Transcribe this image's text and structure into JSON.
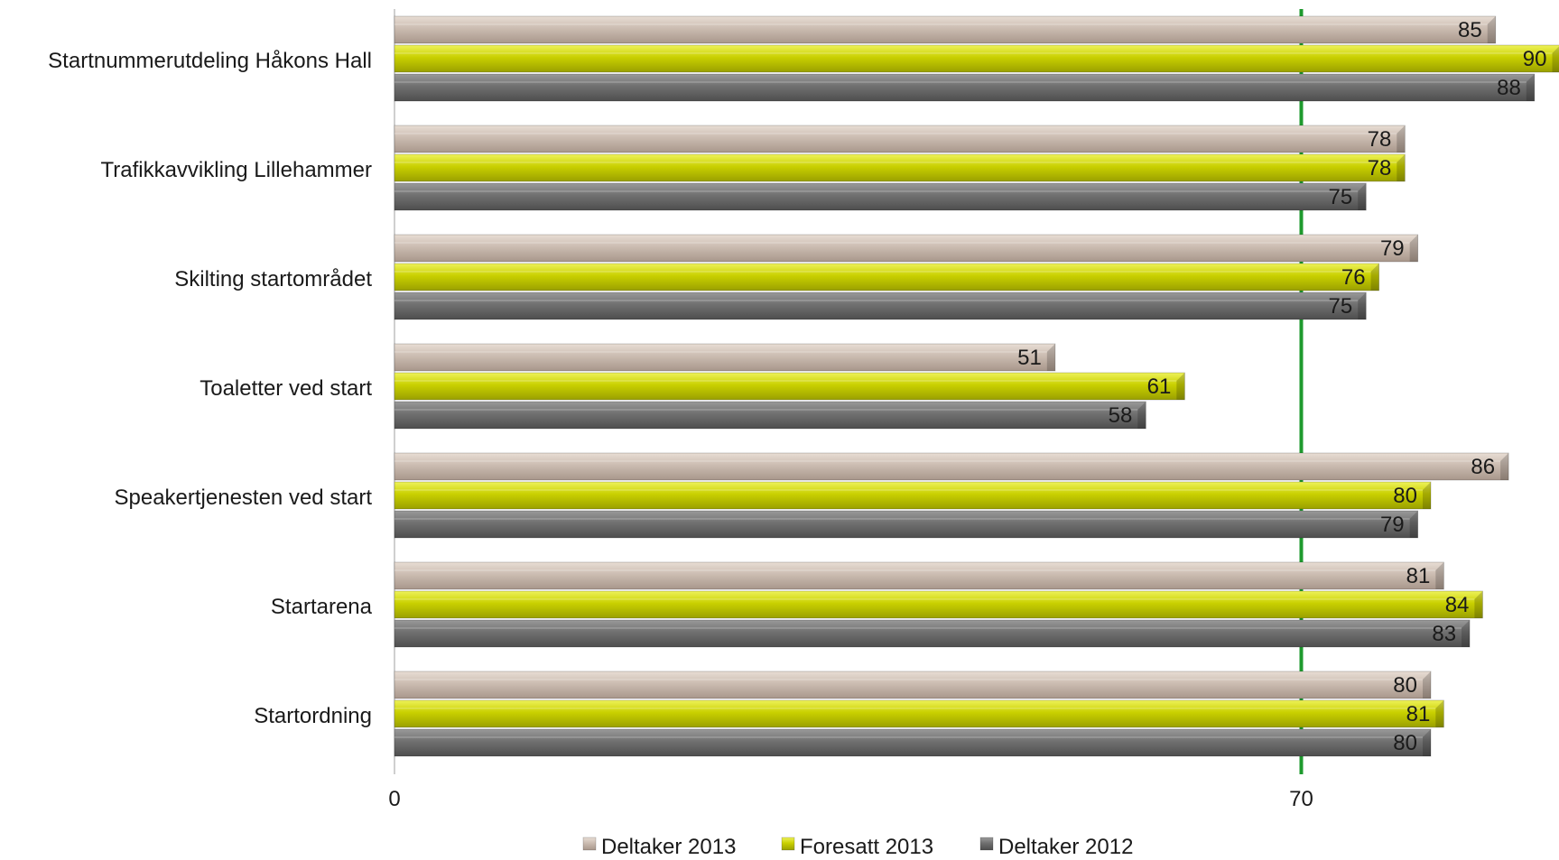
{
  "chart_data": {
    "type": "bar",
    "orientation": "horizontal",
    "categories": [
      "Startnummerutdeling Håkons Hall",
      "Trafikkavvikling Lillehammer",
      "Skilting startområdet",
      "Toaletter ved start",
      "Speakertjenesten ved start",
      "Startarena",
      "Startordning"
    ],
    "series": [
      {
        "name": "Deltaker 2013",
        "values": [
          85,
          78,
          79,
          51,
          86,
          81,
          80
        ],
        "color": "#c9b9ad"
      },
      {
        "name": "Foresatt 2013",
        "values": [
          90,
          78,
          76,
          61,
          80,
          84,
          81
        ],
        "color": "#c4cc00"
      },
      {
        "name": "Deltaker 2012",
        "values": [
          88,
          75,
          75,
          58,
          79,
          83,
          80
        ],
        "color": "#6e6e6e"
      }
    ],
    "x_ticks": [
      "0",
      "70"
    ],
    "xlim": [
      0,
      90
    ],
    "reference_line": {
      "value": 70,
      "color": "#1e9a2e"
    },
    "legend_position": "bottom",
    "grid": false
  }
}
